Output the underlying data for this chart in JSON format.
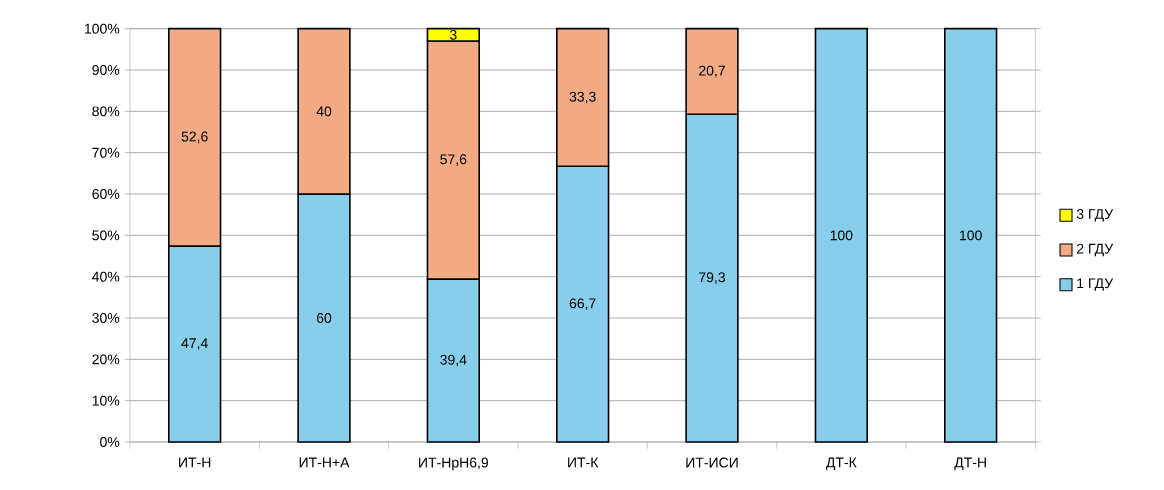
{
  "chart_data": {
    "type": "bar",
    "stacked": true,
    "categories": [
      "ИТ-Н",
      "ИТ-Н+А",
      "ИТ-НрН6,9",
      "ИТ-К",
      "ИТ-ИСИ",
      "ДТ-К",
      "ДТ-Н"
    ],
    "series": [
      {
        "name": "1 ГДУ",
        "color": "#87ceeb",
        "values": [
          47.4,
          60,
          39.4,
          66.7,
          79.3,
          100,
          100
        ],
        "value_labels": [
          "47,4",
          "60",
          "39,4",
          "66,7",
          "79,3",
          "100",
          "100"
        ]
      },
      {
        "name": "2 ГДУ",
        "color": "#f2aa84",
        "values": [
          52.6,
          40,
          57.6,
          33.3,
          20.7,
          null,
          null
        ],
        "value_labels": [
          "52,6",
          "40",
          "57,6",
          "33,3",
          "20,7",
          null,
          null
        ]
      },
      {
        "name": "3 ГДУ",
        "color": "#ffff00",
        "values": [
          null,
          null,
          3,
          null,
          null,
          null,
          null
        ],
        "value_labels": [
          null,
          null,
          "3",
          null,
          null,
          null,
          null
        ]
      }
    ],
    "ylim": [
      0,
      100
    ],
    "yticks": [
      {
        "value": 0,
        "label": "0%"
      },
      {
        "value": 10,
        "label": "10%"
      },
      {
        "value": 20,
        "label": "20%"
      },
      {
        "value": 30,
        "label": "30%"
      },
      {
        "value": 40,
        "label": "40%"
      },
      {
        "value": 50,
        "label": "50%"
      },
      {
        "value": 60,
        "label": "60%"
      },
      {
        "value": 70,
        "label": "70%"
      },
      {
        "value": 80,
        "label": "80%"
      },
      {
        "value": 90,
        "label": "90%"
      },
      {
        "value": 100,
        "label": "100%"
      }
    ],
    "grid": "y",
    "legend": "right"
  }
}
